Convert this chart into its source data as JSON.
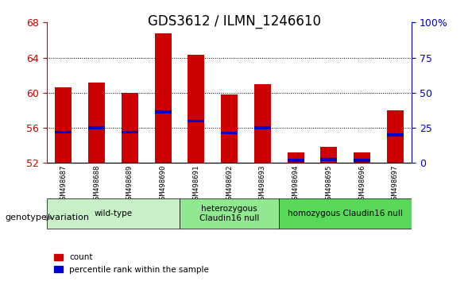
{
  "title": "GDS3612 / ILMN_1246610",
  "samples": [
    "GSM498687",
    "GSM498688",
    "GSM498689",
    "GSM498690",
    "GSM498691",
    "GSM498692",
    "GSM498693",
    "GSM498694",
    "GSM498695",
    "GSM498696",
    "GSM498697"
  ],
  "count_values": [
    60.6,
    61.2,
    60.0,
    66.8,
    64.3,
    59.8,
    61.0,
    53.2,
    53.8,
    53.2,
    58.0
  ],
  "percentile_values": [
    55.5,
    56.0,
    55.5,
    57.8,
    56.8,
    55.4,
    56.0,
    52.3,
    52.4,
    52.3,
    55.2
  ],
  "ymin": 52,
  "ymax": 68,
  "yticks": [
    52,
    56,
    60,
    64,
    68
  ],
  "groups": [
    {
      "label": "wild-type",
      "start": 0,
      "end": 3,
      "color": "#c8f0c8"
    },
    {
      "label": "heterozygous\nClaudin16 null",
      "start": 4,
      "end": 6,
      "color": "#90e890"
    },
    {
      "label": "homozygous Claudin16 null",
      "start": 7,
      "end": 10,
      "color": "#58d858"
    }
  ],
  "bar_color": "#cc0000",
  "percentile_color": "#0000cc",
  "bar_width": 0.5,
  "plot_bg_color": "#ffffff",
  "tick_bg_color": "#d0d0d0",
  "left_tick_color": "#cc0000",
  "right_tick_color": "#0000cc",
  "legend_items": [
    "count",
    "percentile rank within the sample"
  ],
  "xlabel_arrow": "genotype/variation"
}
